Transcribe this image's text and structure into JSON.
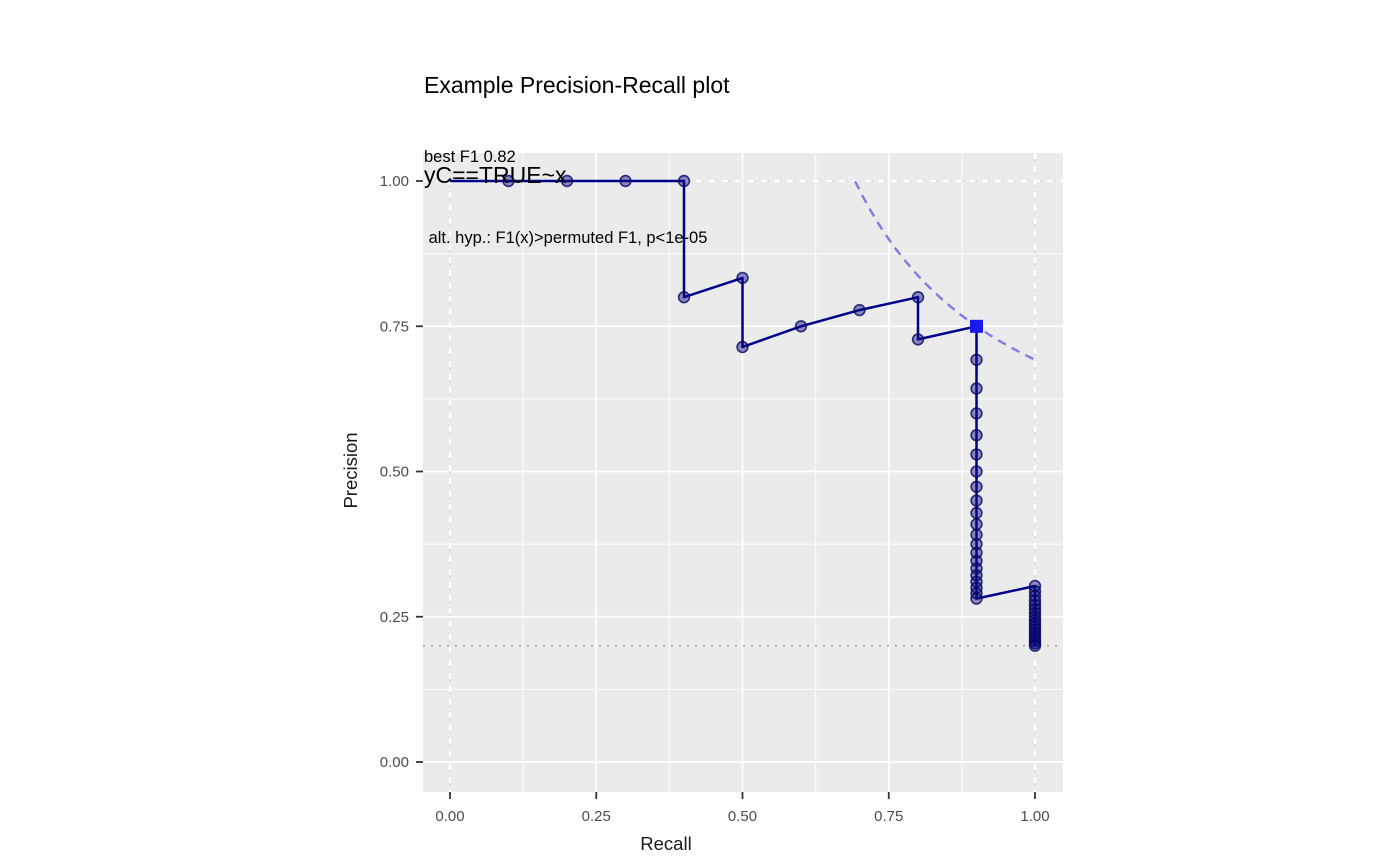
{
  "chart_data": {
    "type": "line",
    "chart_kind": "precision-recall-curve",
    "title_line1": "Example Precision-Recall plot",
    "title_line2": "yC==TRUE~x",
    "subtitle_line1": "best F1 0.82",
    "subtitle_line2": " alt. hyp.: F1(x)>permuted F1, p<1e-05",
    "xlabel": "Recall",
    "ylabel": "Precision",
    "xlim": [
      0,
      1
    ],
    "ylim": [
      0,
      1
    ],
    "x_ticks": {
      "values": [
        0,
        0.25,
        0.5,
        0.75,
        1
      ],
      "labels": [
        "0.00",
        "0.25",
        "0.50",
        "0.75",
        "1.00"
      ]
    },
    "y_ticks": {
      "values": [
        0,
        0.25,
        0.5,
        0.75,
        1
      ],
      "labels": [
        "0.00",
        "0.25",
        "0.50",
        "0.75",
        "1.00"
      ]
    },
    "grid": {
      "major": true,
      "minor": true
    },
    "legend": "none",
    "series": [
      {
        "name": "pr_curve",
        "marker": "circle",
        "points": [
          [
            0,
            1
          ],
          [
            0.1,
            1
          ],
          [
            0.2,
            1
          ],
          [
            0.3,
            1
          ],
          [
            0.4,
            1
          ],
          [
            0.4,
            0.8
          ],
          [
            0.5,
            0.8333
          ],
          [
            0.5,
            0.7143
          ],
          [
            0.6,
            0.75
          ],
          [
            0.7,
            0.7778
          ],
          [
            0.8,
            0.8
          ],
          [
            0.8,
            0.7273
          ],
          [
            0.9,
            0.75
          ],
          [
            0.9,
            0.6923
          ],
          [
            0.9,
            0.6429
          ],
          [
            0.9,
            0.6
          ],
          [
            0.9,
            0.5625
          ],
          [
            0.9,
            0.5294
          ],
          [
            0.9,
            0.5
          ],
          [
            0.9,
            0.4737
          ],
          [
            0.9,
            0.45
          ],
          [
            0.9,
            0.4286
          ],
          [
            0.9,
            0.4091
          ],
          [
            0.9,
            0.3913
          ],
          [
            0.9,
            0.375
          ],
          [
            0.9,
            0.36
          ],
          [
            0.9,
            0.3462
          ],
          [
            0.9,
            0.3333
          ],
          [
            0.9,
            0.3214
          ],
          [
            0.9,
            0.3103
          ],
          [
            0.9,
            0.3
          ],
          [
            0.9,
            0.2903
          ],
          [
            0.9,
            0.2813
          ],
          [
            1,
            0.303
          ],
          [
            1,
            0.2941
          ],
          [
            1,
            0.2857
          ],
          [
            1,
            0.2778
          ],
          [
            1,
            0.2703
          ],
          [
            1,
            0.2632
          ],
          [
            1,
            0.2564
          ],
          [
            1,
            0.25
          ],
          [
            1,
            0.2439
          ],
          [
            1,
            0.2381
          ],
          [
            1,
            0.2326
          ],
          [
            1,
            0.2273
          ],
          [
            1,
            0.2222
          ],
          [
            1,
            0.2174
          ],
          [
            1,
            0.2128
          ],
          [
            1,
            0.2083
          ],
          [
            1,
            0.2041
          ],
          [
            1,
            0.2
          ]
        ]
      }
    ],
    "best_f1_point": {
      "recall": 0.9,
      "precision": 0.75,
      "f1": 0.82,
      "marker": "square"
    },
    "iso_f1_curve": {
      "f1": 0.81818,
      "recall_start": 0.6925,
      "recall_end": 1.0,
      "style": "dashed"
    },
    "prevalence_line": {
      "precision": 0.2,
      "style": "dotted"
    },
    "boundary_guides": {
      "x_values": [
        0,
        1
      ],
      "y_values": [
        1
      ],
      "style": "white-dashed-over-gray-dotted"
    },
    "colors": {
      "curve": "#00008B",
      "point_fill": "rgba(10,10,130,0.45)",
      "point_stroke": "rgba(5,5,100,0.8)",
      "best_point": "#1a1aef",
      "iso_f1": "#7d7de4",
      "prevalence": "#ababab",
      "panel_bg": "#EBEBEB",
      "grid_major": "#FFFFFF",
      "grid_minor": "#FFFFFF",
      "boundary_dash": "#FFFFFF",
      "boundary_dot": "#c9c9c9",
      "tick_mark": "#333333",
      "tick_text": "#4D4D4D",
      "axis_title": "#1a1a1a",
      "title": "#000000"
    }
  }
}
